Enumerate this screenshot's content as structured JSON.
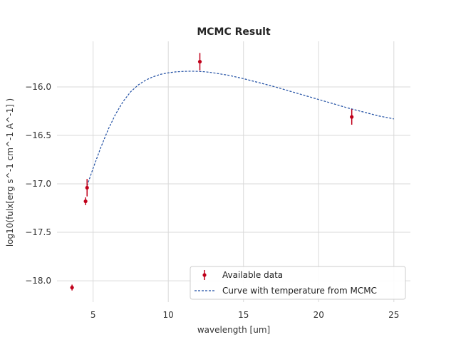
{
  "chart_data": {
    "type": "scatter",
    "title": "MCMC Result",
    "xlabel": "wavelength [um]",
    "ylabel": "log10(fulx[erg s^-1 cm^-1 A^-1] )",
    "xlim": [
      2.6,
      26.1
    ],
    "ylim": [
      -18.22,
      -15.53
    ],
    "xticks": [
      5,
      10,
      15,
      20,
      25
    ],
    "yticks": [
      -18.0,
      -17.5,
      -17.0,
      -16.5,
      -16.0
    ],
    "xtick_labels": [
      "5",
      "10",
      "15",
      "20",
      "25"
    ],
    "ytick_labels": [
      "−18.0",
      "−17.5",
      "−17.0",
      "−16.5",
      "−16.0"
    ],
    "grid": true,
    "legend_position": "lower-right",
    "series": [
      {
        "name": "Available data",
        "kind": "errorbar",
        "color": "#c0001a",
        "x": [
          3.6,
          4.5,
          4.6,
          12.1,
          22.2
        ],
        "y": [
          -18.07,
          -17.18,
          -17.04,
          -15.74,
          -16.31
        ],
        "yerr": [
          0.03,
          0.04,
          0.09,
          0.09,
          0.08
        ]
      },
      {
        "name": "Curve with temperature from MCMC",
        "kind": "dashed-line",
        "color": "#1f4ea3",
        "x": [
          4.6,
          5.0,
          5.5,
          6.0,
          6.5,
          7.0,
          7.5,
          8.0,
          8.5,
          9.0,
          9.5,
          10.0,
          10.5,
          11.0,
          11.5,
          12.0,
          12.5,
          13.0,
          14.0,
          15.0,
          16.0,
          17.0,
          18.0,
          19.0,
          20.0,
          21.0,
          22.0,
          23.0,
          24.0,
          25.0
        ],
        "y": [
          -17.02,
          -16.84,
          -16.63,
          -16.44,
          -16.28,
          -16.15,
          -16.05,
          -15.98,
          -15.93,
          -15.895,
          -15.87,
          -15.855,
          -15.845,
          -15.84,
          -15.838,
          -15.84,
          -15.845,
          -15.855,
          -15.88,
          -15.915,
          -15.955,
          -15.995,
          -16.04,
          -16.085,
          -16.13,
          -16.175,
          -16.22,
          -16.26,
          -16.3,
          -16.33
        ]
      }
    ]
  }
}
